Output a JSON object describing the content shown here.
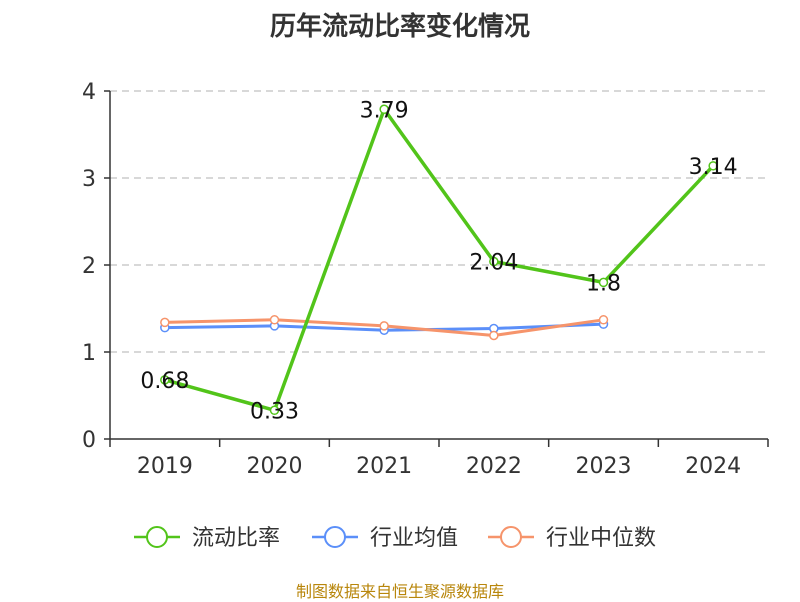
{
  "title": "历年流动比率变化情况",
  "source_note": "制图数据来自恒生聚源数据库",
  "chart_data": {
    "type": "line",
    "title": "历年流动比率变化情况",
    "categories": [
      "2019",
      "2020",
      "2021",
      "2022",
      "2023",
      "2024"
    ],
    "series": [
      {
        "name": "流动比率",
        "color": "#52c41a",
        "values": [
          0.68,
          0.33,
          3.79,
          2.04,
          1.8,
          3.14
        ],
        "labels": [
          "0.68",
          "0.33",
          "3.79",
          "2.04",
          "1.8",
          "3.14"
        ]
      },
      {
        "name": "行业均值",
        "color": "#5b8ff9",
        "values": [
          1.28,
          1.3,
          1.25,
          1.27,
          1.32,
          null
        ]
      },
      {
        "name": "行业中位数",
        "color": "#f6946b",
        "values": [
          1.34,
          1.37,
          1.3,
          1.19,
          1.37,
          null
        ]
      }
    ],
    "ylim": [
      0,
      4
    ],
    "yticks": [
      "0",
      "1",
      "2",
      "3",
      "4"
    ],
    "grid": true,
    "legend_position": "bottom"
  }
}
